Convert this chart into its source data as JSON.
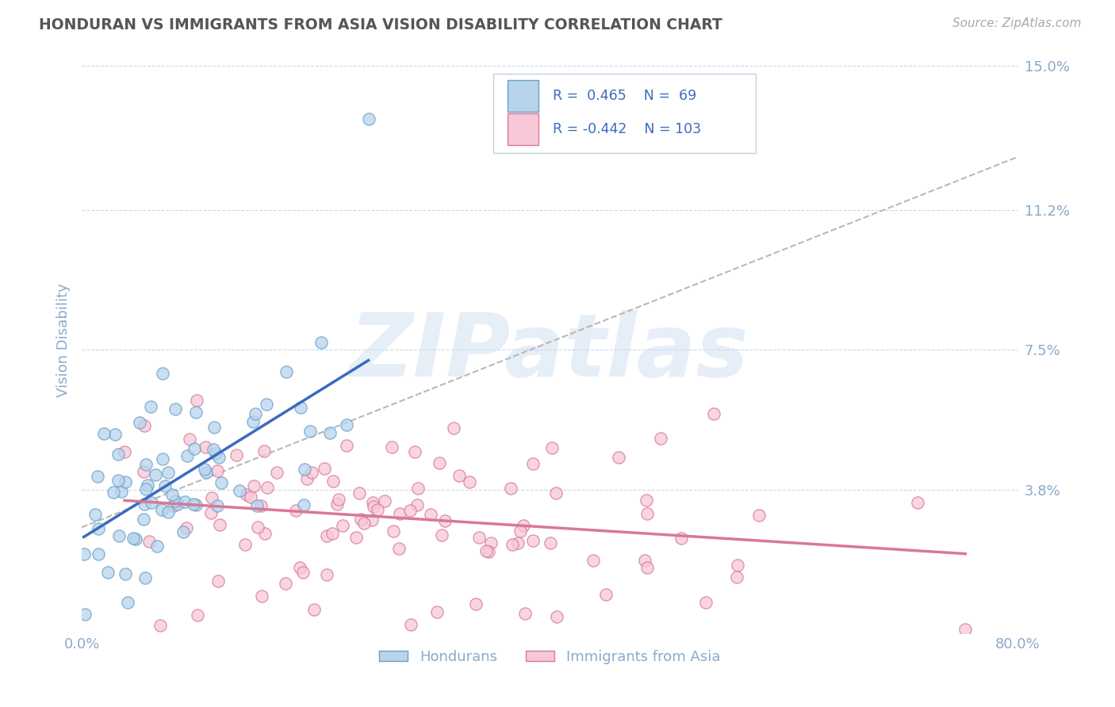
{
  "title": "HONDURAN VS IMMIGRANTS FROM ASIA VISION DISABILITY CORRELATION CHART",
  "source_text": "Source: ZipAtlas.com",
  "ylabel": "Vision Disability",
  "watermark": "ZIPatlas",
  "xlim": [
    0.0,
    0.8
  ],
  "ylim": [
    0.0,
    0.155
  ],
  "ytick_vals": [
    0.038,
    0.075,
    0.112,
    0.15
  ],
  "ytick_labels": [
    "3.8%",
    "7.5%",
    "11.2%",
    "15.0%"
  ],
  "xtick_vals": [
    0.0,
    0.1,
    0.2,
    0.3,
    0.4,
    0.5,
    0.6,
    0.7,
    0.8
  ],
  "xtick_labels": [
    "0.0%",
    "",
    "",
    "",
    "",
    "",
    "",
    "",
    "80.0%"
  ],
  "series1_label": "Hondurans",
  "series1_face_color": "#b8d4ec",
  "series1_edge_color": "#6a9fc8",
  "series1_R": 0.465,
  "series1_N": 69,
  "series1_line_color": "#3a6bbf",
  "series2_label": "Immigrants from Asia",
  "series2_face_color": "#f8c8d8",
  "series2_edge_color": "#d87898",
  "series2_R": -0.442,
  "series2_N": 103,
  "series2_line_color": "#d87898",
  "title_color": "#555555",
  "axis_label_color": "#88aacc",
  "grid_color": "#c8d8e8",
  "tick_color": "#88aacc",
  "background_color": "#ffffff",
  "dashed_line_color": "#b8b8b8",
  "legend_box_color": "#e8f0f8",
  "legend_box_edge": "#c0d0e0"
}
